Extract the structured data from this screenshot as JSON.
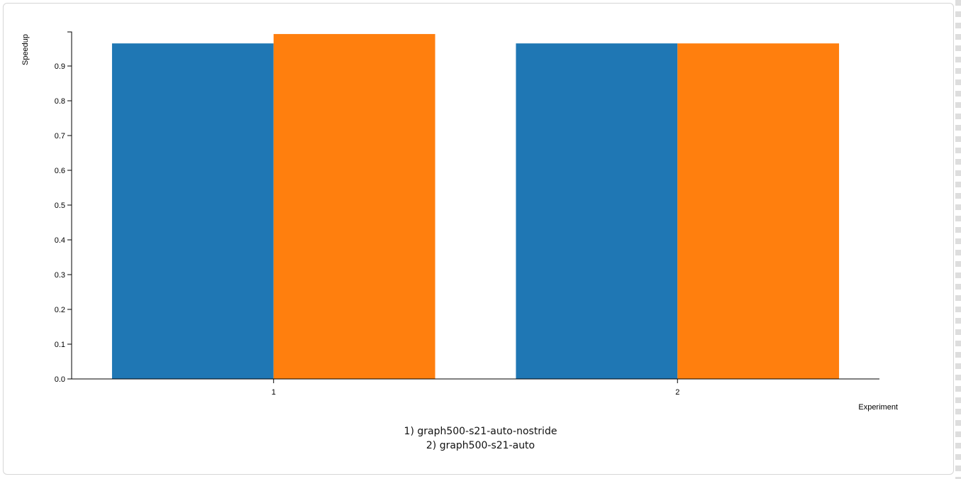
{
  "chart_data": {
    "type": "bar",
    "xlabel": "Experiment",
    "ylabel": "Speedup",
    "categories": [
      "1",
      "2"
    ],
    "series": [
      {
        "color": "#1f77b4",
        "values": [
          0.965,
          0.965
        ]
      },
      {
        "color": "#ff7f0e",
        "values": [
          0.992,
          0.965
        ]
      }
    ],
    "ylim": [
      0,
      0.998
    ],
    "yticks": [
      0.0,
      0.1,
      0.2,
      0.3,
      0.4,
      0.5,
      0.6,
      0.7,
      0.8,
      0.9
    ],
    "ytick_labels": [
      "0.0",
      "0.1",
      "0.2",
      "0.3",
      "0.4",
      "0.5",
      "0.6",
      "0.7",
      "0.8",
      "0.9"
    ]
  },
  "caption": {
    "lines": [
      "1) graph500-s21-auto-nostride",
      "2) graph500-s21-auto"
    ]
  }
}
